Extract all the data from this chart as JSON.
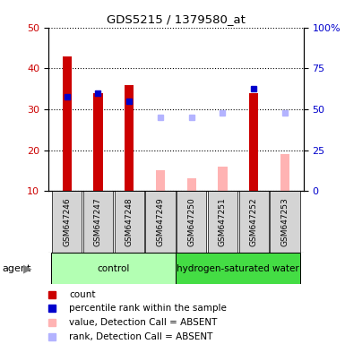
{
  "title": "GDS5215 / 1379580_at",
  "samples": [
    "GSM647246",
    "GSM647247",
    "GSM647248",
    "GSM647249",
    "GSM647250",
    "GSM647251",
    "GSM647252",
    "GSM647253"
  ],
  "groups": [
    {
      "name": "control",
      "color": "#b3ffb3",
      "samples": [
        0,
        1,
        2,
        3
      ]
    },
    {
      "name": "hydrogen-saturated water",
      "color": "#44dd44",
      "samples": [
        4,
        5,
        6,
        7
      ]
    }
  ],
  "bar_colors": {
    "count_present": "#cc0000",
    "count_absent": "#ffb3b3",
    "rank_present": "#0000cc",
    "rank_absent": "#b3b3ff"
  },
  "count_values": [
    43,
    34,
    36,
    15,
    13,
    16,
    34,
    19
  ],
  "rank_values": [
    33,
    34,
    32,
    28,
    28,
    29,
    35,
    29
  ],
  "detection_call": [
    "P",
    "P",
    "P",
    "A",
    "A",
    "A",
    "P",
    "A"
  ],
  "ylim_left": [
    10,
    50
  ],
  "ylim_right": [
    0,
    100
  ],
  "yticks_left": [
    10,
    20,
    30,
    40,
    50
  ],
  "yticks_right": [
    0,
    25,
    50,
    75,
    100
  ],
  "ylabel_left_color": "#cc0000",
  "ylabel_right_color": "#0000cc",
  "legend": [
    {
      "label": "count",
      "color": "#cc0000",
      "marker": "s"
    },
    {
      "label": "percentile rank within the sample",
      "color": "#0000cc",
      "marker": "s"
    },
    {
      "label": "value, Detection Call = ABSENT",
      "color": "#ffb3b3",
      "marker": "s"
    },
    {
      "label": "rank, Detection Call = ABSENT",
      "color": "#b3b3ff",
      "marker": "s"
    }
  ],
  "agent_label": "agent",
  "plot_bg": "#ffffff",
  "bar_width": 0.3
}
